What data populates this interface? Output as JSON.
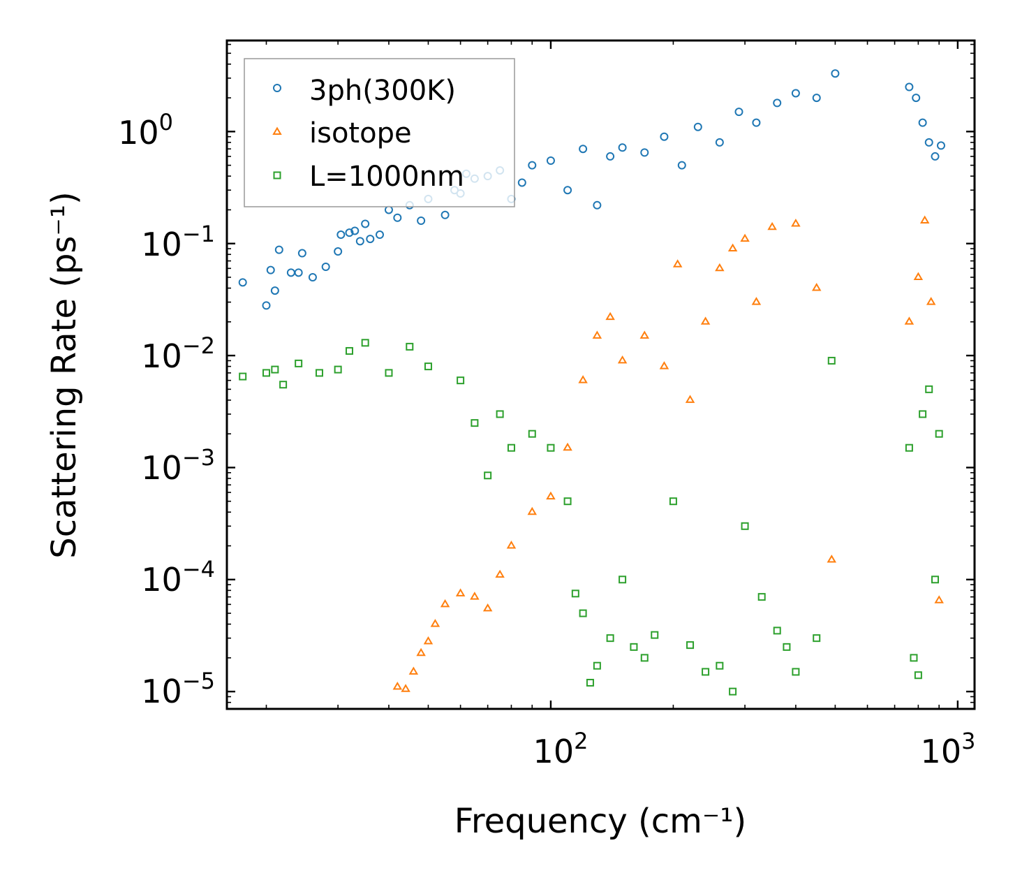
{
  "chart_data": {
    "type": "scatter",
    "xscale": "log",
    "yscale": "log",
    "xlim": [
      16,
      1100
    ],
    "ylim": [
      7e-06,
      6.5
    ],
    "xlabel": "Frequency (cm⁻¹)",
    "ylabel": "Scattering Rate (ps⁻¹)",
    "title": "",
    "grid": false,
    "legend_position": "top-left",
    "x_tick_labels": [
      {
        "value": 100,
        "base": "10",
        "exp": "2"
      },
      {
        "value": 1000,
        "base": "10",
        "exp": "3"
      }
    ],
    "y_tick_labels": [
      {
        "value": 1,
        "base": "10",
        "exp": "0"
      },
      {
        "value": 0.1,
        "base": "10",
        "exp": "−1"
      },
      {
        "value": 0.01,
        "base": "10",
        "exp": "−2"
      },
      {
        "value": 0.001,
        "base": "10",
        "exp": "−3"
      },
      {
        "value": 0.0001,
        "base": "10",
        "exp": "−4"
      },
      {
        "value": 1e-05,
        "base": "10",
        "exp": "−5"
      }
    ],
    "series": [
      {
        "name": "3ph(300K)",
        "marker": "circle",
        "color": "#1f77b4",
        "points": [
          [
            17.5,
            0.045
          ],
          [
            20.0,
            0.028
          ],
          [
            20.5,
            0.058
          ],
          [
            21.0,
            0.038
          ],
          [
            21.5,
            0.088
          ],
          [
            23.0,
            0.055
          ],
          [
            24.0,
            0.055
          ],
          [
            24.5,
            0.082
          ],
          [
            26.0,
            0.05
          ],
          [
            28.0,
            0.062
          ],
          [
            30.0,
            0.085
          ],
          [
            30.5,
            0.12
          ],
          [
            32.0,
            0.125
          ],
          [
            33.0,
            0.13
          ],
          [
            34.0,
            0.105
          ],
          [
            35.0,
            0.15
          ],
          [
            36.0,
            0.11
          ],
          [
            38.0,
            0.12
          ],
          [
            40.0,
            0.2
          ],
          [
            42.0,
            0.17
          ],
          [
            45.0,
            0.22
          ],
          [
            48.0,
            0.16
          ],
          [
            50.0,
            0.25
          ],
          [
            55.0,
            0.18
          ],
          [
            58.0,
            0.3
          ],
          [
            60.0,
            0.28
          ],
          [
            62.0,
            0.42
          ],
          [
            65.0,
            0.38
          ],
          [
            70.0,
            0.4
          ],
          [
            75.0,
            0.45
          ],
          [
            80.0,
            0.25
          ],
          [
            85.0,
            0.35
          ],
          [
            90.0,
            0.5
          ],
          [
            100.0,
            0.55
          ],
          [
            110.0,
            0.3
          ],
          [
            120.0,
            0.7
          ],
          [
            130.0,
            0.22
          ],
          [
            140.0,
            0.6
          ],
          [
            150.0,
            0.72
          ],
          [
            170.0,
            0.65
          ],
          [
            190.0,
            0.9
          ],
          [
            210.0,
            0.5
          ],
          [
            230.0,
            1.1
          ],
          [
            260.0,
            0.8
          ],
          [
            290.0,
            1.5
          ],
          [
            320.0,
            1.2
          ],
          [
            360.0,
            1.8
          ],
          [
            400.0,
            2.2
          ],
          [
            450.0,
            2.0
          ],
          [
            500.0,
            3.3
          ],
          [
            760.0,
            2.5
          ],
          [
            790.0,
            2.0
          ],
          [
            820.0,
            1.2
          ],
          [
            850.0,
            0.8
          ],
          [
            880.0,
            0.6
          ],
          [
            910.0,
            0.75
          ]
        ]
      },
      {
        "name": "isotope",
        "marker": "triangle",
        "color": "#ff7f0e",
        "points": [
          [
            42.0,
            1.1e-05
          ],
          [
            44.0,
            1.05e-05
          ],
          [
            46.0,
            1.5e-05
          ],
          [
            48.0,
            2.2e-05
          ],
          [
            50.0,
            2.8e-05
          ],
          [
            52.0,
            4e-05
          ],
          [
            55.0,
            6e-05
          ],
          [
            60.0,
            7.5e-05
          ],
          [
            65.0,
            7e-05
          ],
          [
            70.0,
            5.5e-05
          ],
          [
            75.0,
            0.00011
          ],
          [
            80.0,
            0.0002
          ],
          [
            90.0,
            0.0004
          ],
          [
            100.0,
            0.00055
          ],
          [
            110.0,
            0.0015
          ],
          [
            120.0,
            0.006
          ],
          [
            130.0,
            0.015
          ],
          [
            140.0,
            0.022
          ],
          [
            150.0,
            0.009
          ],
          [
            170.0,
            0.015
          ],
          [
            190.0,
            0.008
          ],
          [
            205.0,
            0.065
          ],
          [
            220.0,
            0.004
          ],
          [
            240.0,
            0.02
          ],
          [
            260.0,
            0.06
          ],
          [
            280.0,
            0.09
          ],
          [
            300.0,
            0.11
          ],
          [
            320.0,
            0.03
          ],
          [
            350.0,
            0.14
          ],
          [
            400.0,
            0.15
          ],
          [
            450.0,
            0.04
          ],
          [
            490.0,
            0.00015
          ],
          [
            760.0,
            0.02
          ],
          [
            800.0,
            0.05
          ],
          [
            830.0,
            0.16
          ],
          [
            860.0,
            0.03
          ],
          [
            900.0,
            6.5e-05
          ]
        ]
      },
      {
        "name": "L=1000nm",
        "marker": "square",
        "color": "#2ca02c",
        "points": [
          [
            17.5,
            0.0065
          ],
          [
            20.0,
            0.007
          ],
          [
            21.0,
            0.0075
          ],
          [
            22.0,
            0.0055
          ],
          [
            24.0,
            0.0085
          ],
          [
            27.0,
            0.007
          ],
          [
            30.0,
            0.0075
          ],
          [
            32.0,
            0.011
          ],
          [
            35.0,
            0.013
          ],
          [
            40.0,
            0.007
          ],
          [
            45.0,
            0.012
          ],
          [
            50.0,
            0.008
          ],
          [
            60.0,
            0.006
          ],
          [
            65.0,
            0.0025
          ],
          [
            70.0,
            0.00085
          ],
          [
            75.0,
            0.003
          ],
          [
            80.0,
            0.0015
          ],
          [
            90.0,
            0.002
          ],
          [
            100.0,
            0.0015
          ],
          [
            110.0,
            0.0005
          ],
          [
            115.0,
            7.5e-05
          ],
          [
            120.0,
            5e-05
          ],
          [
            125.0,
            1.2e-05
          ],
          [
            130.0,
            1.7e-05
          ],
          [
            140.0,
            3e-05
          ],
          [
            150.0,
            0.0001
          ],
          [
            160.0,
            2.5e-05
          ],
          [
            170.0,
            2e-05
          ],
          [
            180.0,
            3.2e-05
          ],
          [
            200.0,
            0.0005
          ],
          [
            220.0,
            2.6e-05
          ],
          [
            240.0,
            1.5e-05
          ],
          [
            260.0,
            1.7e-05
          ],
          [
            280.0,
            1e-05
          ],
          [
            300.0,
            0.0003
          ],
          [
            330.0,
            7e-05
          ],
          [
            360.0,
            3.5e-05
          ],
          [
            380.0,
            2.5e-05
          ],
          [
            400.0,
            1.5e-05
          ],
          [
            450.0,
            3e-05
          ],
          [
            490.0,
            0.009
          ],
          [
            760.0,
            0.0015
          ],
          [
            780.0,
            2e-05
          ],
          [
            800.0,
            1.4e-05
          ],
          [
            820.0,
            0.003
          ],
          [
            850.0,
            0.005
          ],
          [
            880.0,
            0.0001
          ],
          [
            900.0,
            0.002
          ]
        ]
      }
    ]
  }
}
